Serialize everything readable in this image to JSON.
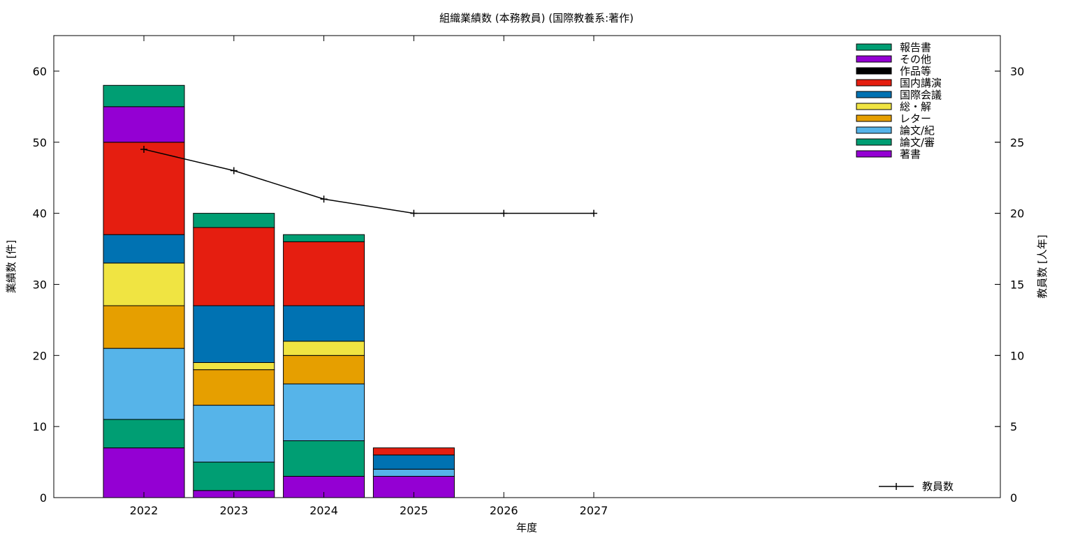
{
  "chart_data": {
    "type": "bar",
    "title": "組織業績数 (本務教員) (国際教養系:著作)",
    "xlabel": "年度",
    "ylabel": "業績数 [件]",
    "y2label": "教員数 [人年]",
    "categories": [
      "2022",
      "2023",
      "2024",
      "2025",
      "2026",
      "2027"
    ],
    "ylim": [
      0,
      65
    ],
    "y2lim": [
      0,
      32.5
    ],
    "yticks": [
      0,
      10,
      20,
      30,
      40,
      50,
      60
    ],
    "y2ticks": [
      0,
      5,
      10,
      15,
      20,
      25,
      30
    ],
    "stacked": true,
    "grid": false,
    "legend_position": "top-right",
    "series": [
      {
        "name": "著書",
        "color": "#9400d3",
        "values": [
          7,
          1,
          3,
          3,
          0,
          0
        ]
      },
      {
        "name": "論文/審",
        "color": "#009e73",
        "values": [
          4,
          4,
          5,
          0,
          0,
          0
        ]
      },
      {
        "name": "論文/紀",
        "color": "#56b4e9",
        "values": [
          10,
          8,
          8,
          1,
          0,
          0
        ]
      },
      {
        "name": "レター",
        "color": "#e69f00",
        "values": [
          6,
          5,
          4,
          0,
          0,
          0
        ]
      },
      {
        "name": "総・解",
        "color": "#f0e442",
        "values": [
          6,
          1,
          2,
          0,
          0,
          0
        ]
      },
      {
        "name": "国際会議",
        "color": "#0072b2",
        "values": [
          4,
          8,
          5,
          2,
          0,
          0
        ]
      },
      {
        "name": "国内講演",
        "color": "#e51e10",
        "values": [
          13,
          11,
          9,
          1,
          0,
          0
        ]
      },
      {
        "name": "作品等",
        "color": "#000000",
        "values": [
          0,
          0,
          0,
          0,
          0,
          0
        ]
      },
      {
        "name": "その他",
        "color": "#9400d3",
        "values": [
          5,
          0,
          0,
          0,
          0,
          0
        ]
      },
      {
        "name": "報告書",
        "color": "#009e73",
        "values": [
          3,
          2,
          1,
          0,
          0,
          0
        ]
      }
    ],
    "line_series": {
      "name": "教員数",
      "color": "#000000",
      "axis": "y2",
      "values": [
        24.5,
        23.0,
        21.0,
        20.0,
        20.0,
        20.0
      ]
    }
  }
}
